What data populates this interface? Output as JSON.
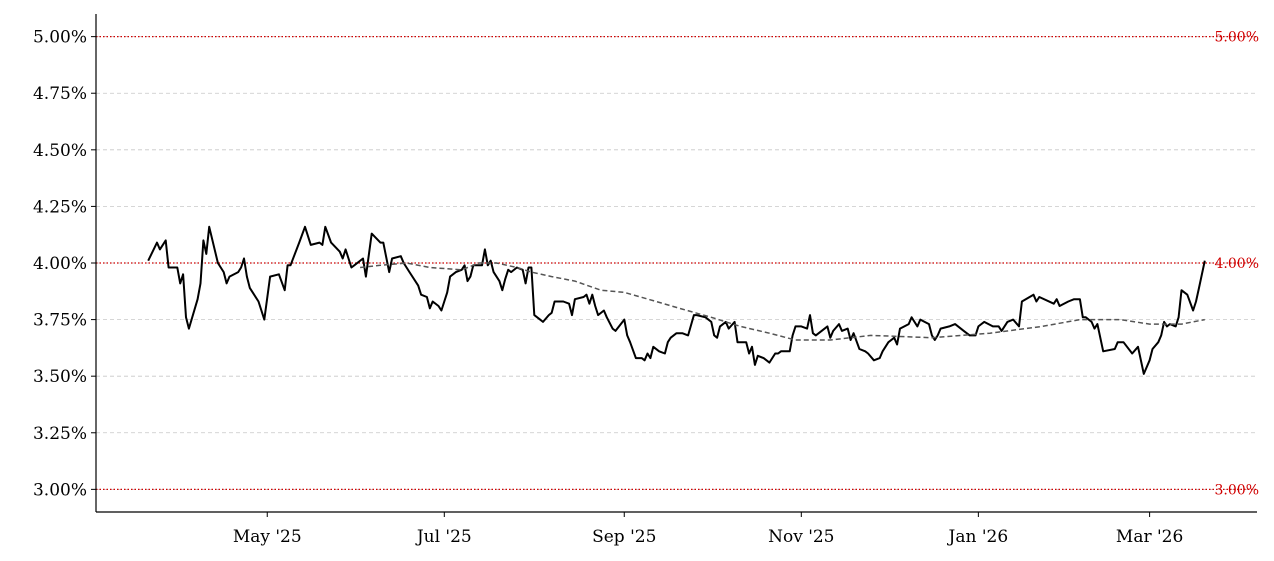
{
  "chart_data": {
    "type": "line",
    "title": "",
    "xlabel": "",
    "ylabel": "",
    "ylim": [
      2.9,
      5.1
    ],
    "xlim": [
      "2025-03-03",
      "2026-04-07"
    ],
    "grid": "horizontal dashed",
    "y_ticks": [
      "3.00%",
      "3.25%",
      "3.50%",
      "3.75%",
      "4.00%",
      "4.25%",
      "4.50%",
      "4.75%",
      "5.00%"
    ],
    "y_tick_values": [
      3.0,
      3.25,
      3.5,
      3.75,
      4.0,
      4.25,
      4.5,
      4.75,
      5.0
    ],
    "x_ticks": [
      {
        "date": "2025-05-01",
        "label": "May '25"
      },
      {
        "date": "2025-07-01",
        "label": "Jul '25"
      },
      {
        "date": "2025-09-01",
        "label": "Sep '25"
      },
      {
        "date": "2025-11-01",
        "label": "Nov '25"
      },
      {
        "date": "2026-01-01",
        "label": "Jan '26"
      },
      {
        "date": "2026-03-01",
        "label": "Mar '26"
      }
    ],
    "reference_lines": [
      {
        "value": 5.0,
        "label": "5.00%",
        "color": "#d00000"
      },
      {
        "value": 4.0,
        "label": "4.00%",
        "color": "#d00000"
      },
      {
        "value": 3.0,
        "label": "3.00%",
        "color": "#d00000"
      }
    ],
    "series": [
      {
        "style": "solid",
        "color": "#000000",
        "points": [
          [
            "2025-03-21",
            4.01
          ],
          [
            "2025-03-24",
            4.09
          ],
          [
            "2025-03-25",
            4.06
          ],
          [
            "2025-03-27",
            4.1
          ],
          [
            "2025-03-28",
            3.98
          ],
          [
            "2025-03-31",
            3.98
          ],
          [
            "2025-04-01",
            3.91
          ],
          [
            "2025-04-02",
            3.95
          ],
          [
            "2025-04-03",
            3.76
          ],
          [
            "2025-04-04",
            3.71
          ],
          [
            "2025-04-07",
            3.84
          ],
          [
            "2025-04-08",
            3.91
          ],
          [
            "2025-04-09",
            4.1
          ],
          [
            "2025-04-10",
            4.04
          ],
          [
            "2025-04-11",
            4.16
          ],
          [
            "2025-04-14",
            4.0
          ],
          [
            "2025-04-16",
            3.96
          ],
          [
            "2025-04-17",
            3.91
          ],
          [
            "2025-04-18",
            3.94
          ],
          [
            "2025-04-21",
            3.96
          ],
          [
            "2025-04-22",
            3.98
          ],
          [
            "2025-04-23",
            4.02
          ],
          [
            "2025-04-24",
            3.94
          ],
          [
            "2025-04-25",
            3.89
          ],
          [
            "2025-04-28",
            3.83
          ],
          [
            "2025-04-30",
            3.75
          ],
          [
            "2025-05-02",
            3.94
          ],
          [
            "2025-05-05",
            3.95
          ],
          [
            "2025-05-07",
            3.88
          ],
          [
            "2025-05-08",
            3.99
          ],
          [
            "2025-05-09",
            3.99
          ],
          [
            "2025-05-12",
            4.09
          ],
          [
            "2025-05-14",
            4.16
          ],
          [
            "2025-05-16",
            4.08
          ],
          [
            "2025-05-19",
            4.09
          ],
          [
            "2025-05-20",
            4.08
          ],
          [
            "2025-05-21",
            4.16
          ],
          [
            "2025-05-23",
            4.09
          ],
          [
            "2025-05-26",
            4.05
          ],
          [
            "2025-05-27",
            4.02
          ],
          [
            "2025-05-28",
            4.06
          ],
          [
            "2025-05-30",
            3.98
          ],
          [
            "2025-05-31",
            3.99
          ],
          [
            "2025-06-03",
            4.02
          ],
          [
            "2025-06-04",
            3.94
          ],
          [
            "2025-06-06",
            4.13
          ],
          [
            "2025-06-09",
            4.09
          ],
          [
            "2025-06-10",
            4.09
          ],
          [
            "2025-06-12",
            3.96
          ],
          [
            "2025-06-13",
            4.02
          ],
          [
            "2025-06-16",
            4.03
          ],
          [
            "2025-06-17",
            4.0
          ],
          [
            "2025-06-19",
            3.96
          ],
          [
            "2025-06-22",
            3.9
          ],
          [
            "2025-06-23",
            3.86
          ],
          [
            "2025-06-25",
            3.85
          ],
          [
            "2025-06-26",
            3.8
          ],
          [
            "2025-06-27",
            3.83
          ],
          [
            "2025-06-29",
            3.81
          ],
          [
            "2025-06-30",
            3.79
          ],
          [
            "2025-07-02",
            3.87
          ],
          [
            "2025-07-03",
            3.94
          ],
          [
            "2025-07-05",
            3.96
          ],
          [
            "2025-07-07",
            3.97
          ],
          [
            "2025-07-08",
            3.99
          ],
          [
            "2025-07-09",
            3.92
          ],
          [
            "2025-07-10",
            3.94
          ],
          [
            "2025-07-11",
            3.99
          ],
          [
            "2025-07-13",
            3.99
          ],
          [
            "2025-07-14",
            3.99
          ],
          [
            "2025-07-15",
            4.06
          ],
          [
            "2025-07-16",
            3.99
          ],
          [
            "2025-07-17",
            4.01
          ],
          [
            "2025-07-18",
            3.96
          ],
          [
            "2025-07-20",
            3.92
          ],
          [
            "2025-07-21",
            3.88
          ],
          [
            "2025-07-22",
            3.93
          ],
          [
            "2025-07-23",
            3.97
          ],
          [
            "2025-07-24",
            3.96
          ],
          [
            "2025-07-26",
            3.98
          ],
          [
            "2025-07-28",
            3.97
          ],
          [
            "2025-07-29",
            3.91
          ],
          [
            "2025-07-30",
            3.98
          ],
          [
            "2025-07-31",
            3.98
          ],
          [
            "2025-08-01",
            3.77
          ],
          [
            "2025-08-03",
            3.75
          ],
          [
            "2025-08-04",
            3.74
          ],
          [
            "2025-08-06",
            3.77
          ],
          [
            "2025-08-07",
            3.78
          ],
          [
            "2025-08-08",
            3.83
          ],
          [
            "2025-08-11",
            3.83
          ],
          [
            "2025-08-13",
            3.82
          ],
          [
            "2025-08-14",
            3.77
          ],
          [
            "2025-08-15",
            3.84
          ],
          [
            "2025-08-18",
            3.85
          ],
          [
            "2025-08-19",
            3.86
          ],
          [
            "2025-08-20",
            3.82
          ],
          [
            "2025-08-21",
            3.86
          ],
          [
            "2025-08-22",
            3.81
          ],
          [
            "2025-08-23",
            3.77
          ],
          [
            "2025-08-25",
            3.79
          ],
          [
            "2025-08-26",
            3.76
          ],
          [
            "2025-08-28",
            3.71
          ],
          [
            "2025-08-29",
            3.7
          ],
          [
            "2025-09-01",
            3.75
          ],
          [
            "2025-09-02",
            3.68
          ],
          [
            "2025-09-03",
            3.65
          ],
          [
            "2025-09-05",
            3.58
          ],
          [
            "2025-09-07",
            3.58
          ],
          [
            "2025-09-08",
            3.57
          ],
          [
            "2025-09-09",
            3.6
          ],
          [
            "2025-09-10",
            3.58
          ],
          [
            "2025-09-11",
            3.63
          ],
          [
            "2025-09-13",
            3.61
          ],
          [
            "2025-09-15",
            3.6
          ],
          [
            "2025-09-16",
            3.65
          ],
          [
            "2025-09-17",
            3.67
          ],
          [
            "2025-09-19",
            3.69
          ],
          [
            "2025-09-21",
            3.69
          ],
          [
            "2025-09-23",
            3.68
          ],
          [
            "2025-09-25",
            3.77
          ],
          [
            "2025-09-26",
            3.77
          ],
          [
            "2025-09-29",
            3.76
          ],
          [
            "2025-10-01",
            3.74
          ],
          [
            "2025-10-02",
            3.68
          ],
          [
            "2025-10-03",
            3.67
          ],
          [
            "2025-10-04",
            3.72
          ],
          [
            "2025-10-06",
            3.74
          ],
          [
            "2025-10-07",
            3.71
          ],
          [
            "2025-10-09",
            3.74
          ],
          [
            "2025-10-10",
            3.65
          ],
          [
            "2025-10-13",
            3.65
          ],
          [
            "2025-10-14",
            3.6
          ],
          [
            "2025-10-15",
            3.63
          ],
          [
            "2025-10-16",
            3.55
          ],
          [
            "2025-10-17",
            3.59
          ],
          [
            "2025-10-19",
            3.58
          ],
          [
            "2025-10-21",
            3.56
          ],
          [
            "2025-10-23",
            3.6
          ],
          [
            "2025-10-24",
            3.6
          ],
          [
            "2025-10-25",
            3.61
          ],
          [
            "2025-10-28",
            3.61
          ],
          [
            "2025-10-29",
            3.68
          ],
          [
            "2025-10-30",
            3.72
          ],
          [
            "2025-11-01",
            3.72
          ],
          [
            "2025-11-03",
            3.71
          ],
          [
            "2025-11-04",
            3.77
          ],
          [
            "2025-11-05",
            3.69
          ],
          [
            "2025-11-06",
            3.68
          ],
          [
            "2025-11-10",
            3.72
          ],
          [
            "2025-11-11",
            3.67
          ],
          [
            "2025-11-12",
            3.7
          ],
          [
            "2025-11-14",
            3.73
          ],
          [
            "2025-11-15",
            3.7
          ],
          [
            "2025-11-17",
            3.71
          ],
          [
            "2025-11-18",
            3.66
          ],
          [
            "2025-11-19",
            3.69
          ],
          [
            "2025-11-21",
            3.62
          ],
          [
            "2025-11-23",
            3.61
          ],
          [
            "2025-11-24",
            3.6
          ],
          [
            "2025-11-26",
            3.57
          ],
          [
            "2025-11-28",
            3.58
          ],
          [
            "2025-11-29",
            3.61
          ],
          [
            "2025-12-01",
            3.65
          ],
          [
            "2025-12-03",
            3.67
          ],
          [
            "2025-12-04",
            3.64
          ],
          [
            "2025-12-05",
            3.71
          ],
          [
            "2025-12-08",
            3.73
          ],
          [
            "2025-12-09",
            3.76
          ],
          [
            "2025-12-10",
            3.74
          ],
          [
            "2025-12-11",
            3.72
          ],
          [
            "2025-12-12",
            3.75
          ],
          [
            "2025-12-15",
            3.73
          ],
          [
            "2025-12-16",
            3.68
          ],
          [
            "2025-12-17",
            3.66
          ],
          [
            "2025-12-18",
            3.68
          ],
          [
            "2025-12-19",
            3.71
          ],
          [
            "2025-12-22",
            3.72
          ],
          [
            "2025-12-24",
            3.73
          ],
          [
            "2025-12-27",
            3.7
          ],
          [
            "2025-12-29",
            3.68
          ],
          [
            "2025-12-31",
            3.68
          ],
          [
            "2026-01-01",
            3.72
          ],
          [
            "2026-01-02",
            3.73
          ],
          [
            "2026-01-03",
            3.74
          ],
          [
            "2026-01-06",
            3.72
          ],
          [
            "2026-01-08",
            3.72
          ],
          [
            "2026-01-09",
            3.7
          ],
          [
            "2026-01-11",
            3.74
          ],
          [
            "2026-01-13",
            3.75
          ],
          [
            "2026-01-15",
            3.72
          ],
          [
            "2026-01-16",
            3.83
          ],
          [
            "2026-01-20",
            3.86
          ],
          [
            "2026-01-21",
            3.83
          ],
          [
            "2026-01-22",
            3.85
          ],
          [
            "2026-01-27",
            3.82
          ],
          [
            "2026-01-28",
            3.84
          ],
          [
            "2026-01-29",
            3.81
          ],
          [
            "2026-02-01",
            3.83
          ],
          [
            "2026-02-03",
            3.84
          ],
          [
            "2026-02-05",
            3.84
          ],
          [
            "2026-02-06",
            3.76
          ],
          [
            "2026-02-07",
            3.76
          ],
          [
            "2026-02-09",
            3.74
          ],
          [
            "2026-02-10",
            3.71
          ],
          [
            "2026-02-11",
            3.73
          ],
          [
            "2026-02-13",
            3.61
          ],
          [
            "2026-02-17",
            3.62
          ],
          [
            "2026-02-18",
            3.65
          ],
          [
            "2026-02-20",
            3.65
          ],
          [
            "2026-02-23",
            3.6
          ],
          [
            "2026-02-25",
            3.63
          ],
          [
            "2026-02-27",
            3.51
          ],
          [
            "2026-03-01",
            3.57
          ],
          [
            "2026-03-02",
            3.62
          ],
          [
            "2026-03-04",
            3.65
          ],
          [
            "2026-03-05",
            3.68
          ],
          [
            "2026-03-06",
            3.74
          ],
          [
            "2026-03-07",
            3.72
          ],
          [
            "2026-03-08",
            3.73
          ],
          [
            "2026-03-10",
            3.72
          ],
          [
            "2026-03-11",
            3.76
          ],
          [
            "2026-03-12",
            3.88
          ],
          [
            "2026-03-14",
            3.86
          ],
          [
            "2026-03-16",
            3.79
          ],
          [
            "2026-03-17",
            3.83
          ],
          [
            "2026-03-18",
            3.89
          ],
          [
            "2026-03-20",
            4.01
          ]
        ]
      },
      {
        "style": "dashed",
        "color": "#555555",
        "points": [
          [
            "2025-06-02",
            3.98
          ],
          [
            "2025-06-09",
            3.99
          ],
          [
            "2025-06-18",
            4.0
          ],
          [
            "2025-06-26",
            3.98
          ],
          [
            "2025-07-07",
            3.97
          ],
          [
            "2025-07-13",
            4.0
          ],
          [
            "2025-07-19",
            4.0
          ],
          [
            "2025-07-26",
            3.98
          ],
          [
            "2025-07-31",
            3.96
          ],
          [
            "2025-08-07",
            3.94
          ],
          [
            "2025-08-15",
            3.92
          ],
          [
            "2025-08-24",
            3.88
          ],
          [
            "2025-09-01",
            3.87
          ],
          [
            "2025-09-12",
            3.83
          ],
          [
            "2025-09-20",
            3.8
          ],
          [
            "2025-10-01",
            3.76
          ],
          [
            "2025-10-11",
            3.72
          ],
          [
            "2025-10-21",
            3.69
          ],
          [
            "2025-10-30",
            3.66
          ],
          [
            "2025-11-11",
            3.66
          ],
          [
            "2025-11-25",
            3.68
          ],
          [
            "2025-12-16",
            3.67
          ],
          [
            "2026-01-05",
            3.69
          ],
          [
            "2026-01-23",
            3.72
          ],
          [
            "2026-02-05",
            3.75
          ],
          [
            "2026-02-19",
            3.75
          ],
          [
            "2026-03-01",
            3.73
          ],
          [
            "2026-03-12",
            3.73
          ],
          [
            "2026-03-20",
            3.75
          ]
        ]
      }
    ]
  }
}
